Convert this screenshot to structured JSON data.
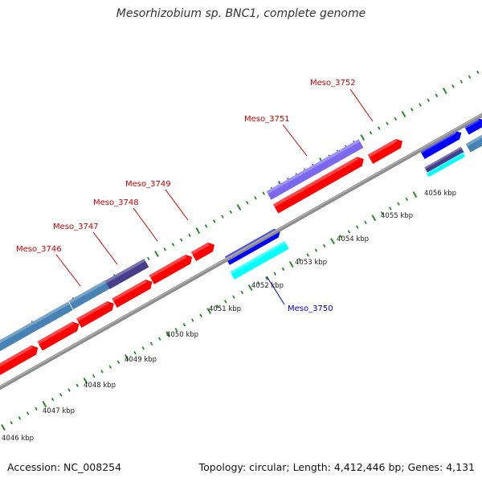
{
  "title": "Mesorhizobium sp. BNC1, complete genome",
  "footer": {
    "accession": "Accession: NC_008254",
    "topology": "Topology: circular; Length: 4,412,446 bp; Genes: 4,131"
  },
  "colors": {
    "backbone": "#8c8c8c",
    "tick": "#2a8a2a",
    "label_forward": "#cc0000",
    "label_reverse": "#0000cc",
    "gene_red": "#ff0000",
    "gene_steel": "#4682b4",
    "gene_slate": "#483d8b",
    "gene_blue": "#0000ff",
    "gene_cyan": "#00ffff",
    "gene_purple": "#7b68ee"
  },
  "scale_labels": [
    "4046 kbp",
    "4047 kbp",
    "4048 kbp",
    "4049 kbp",
    "4050 kbp",
    "4051 kbp",
    "4052 kbp",
    "4053 kbp",
    "4054 kbp",
    "4055 kbp",
    "4056 kbp"
  ],
  "locus_labels": [
    {
      "text": "Meso_3746",
      "strand": "forward"
    },
    {
      "text": "Meso_3747",
      "strand": "forward"
    },
    {
      "text": "Meso_3748",
      "strand": "forward"
    },
    {
      "text": "Meso_3749",
      "strand": "forward"
    },
    {
      "text": "Meso_3750",
      "strand": "reverse"
    },
    {
      "text": "Meso_3751",
      "strand": "forward"
    },
    {
      "text": "Meso_3752",
      "strand": "forward"
    }
  ],
  "legend_icons": [
    "gene-arrow-icon"
  ]
}
